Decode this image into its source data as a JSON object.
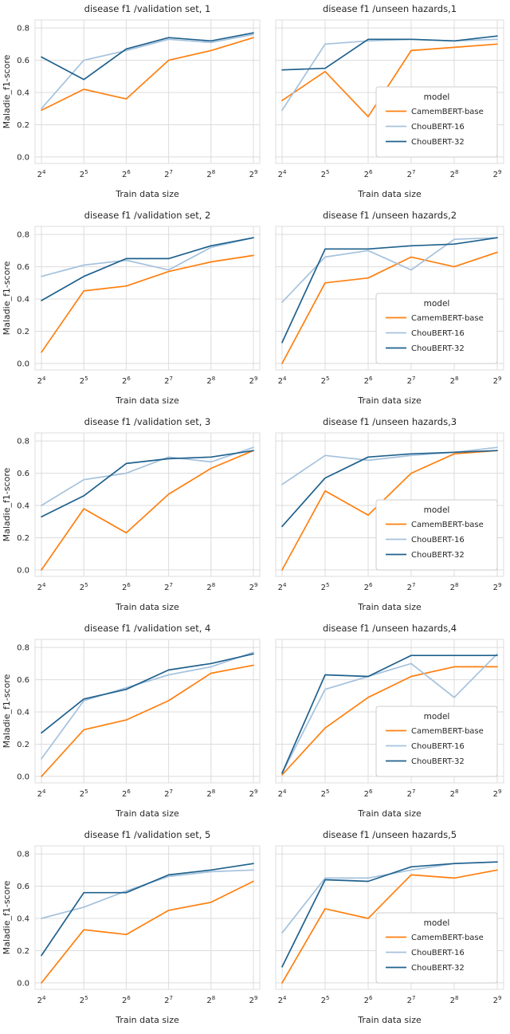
{
  "style": {
    "text_color": "#262626",
    "grid_color": "#dcdcdc",
    "background": "#ffffff",
    "series_colors": {
      "CamemBERT-base": "#ff7f0e",
      "ChouBERT-16": "#a5c2dd",
      "ChouBERT-32": "#1f618d"
    }
  },
  "axes": {
    "xlabel": "Train data size",
    "ylabel": "Maladie_f1-score",
    "x_tick_base": "2",
    "x_exponents": [
      4,
      5,
      6,
      7,
      8,
      9
    ],
    "yticks": [
      0.0,
      0.2,
      0.4,
      0.6,
      0.8
    ],
    "ylim": [
      -0.04,
      0.85
    ]
  },
  "legend": {
    "title": "model",
    "entries": [
      "CamemBERT-base",
      "ChouBERT-16",
      "ChouBERT-32"
    ]
  },
  "chart_data": [
    {
      "type": "line",
      "name": "validation-set-1-chart",
      "col": "left",
      "title": "disease f1 /validation set, 1",
      "show_legend": false,
      "series": [
        {
          "name": "CamemBERT-base",
          "values": [
            0.29,
            0.42,
            0.36,
            0.6,
            0.66,
            0.74
          ]
        },
        {
          "name": "ChouBERT-16",
          "values": [
            0.3,
            0.6,
            0.66,
            0.73,
            0.71,
            0.76
          ]
        },
        {
          "name": "ChouBERT-32",
          "values": [
            0.62,
            0.48,
            0.67,
            0.74,
            0.72,
            0.77
          ]
        }
      ]
    },
    {
      "type": "line",
      "name": "unseen-hazards-1-chart",
      "col": "right",
      "title": "disease f1 /unseen hazards,1",
      "show_legend": true,
      "series": [
        {
          "name": "CamemBERT-base",
          "values": [
            0.35,
            0.53,
            0.25,
            0.66,
            0.68,
            0.7
          ]
        },
        {
          "name": "ChouBERT-16",
          "values": [
            0.29,
            0.7,
            0.72,
            0.73,
            0.72,
            0.73
          ]
        },
        {
          "name": "ChouBERT-32",
          "values": [
            0.54,
            0.55,
            0.73,
            0.73,
            0.72,
            0.75
          ]
        }
      ]
    },
    {
      "type": "line",
      "name": "validation-set-2-chart",
      "col": "left",
      "title": "disease f1 /validation set, 2",
      "show_legend": false,
      "series": [
        {
          "name": "CamemBERT-base",
          "values": [
            0.07,
            0.45,
            0.48,
            0.57,
            0.63,
            0.67
          ]
        },
        {
          "name": "ChouBERT-16",
          "values": [
            0.54,
            0.61,
            0.64,
            0.58,
            0.72,
            0.78
          ]
        },
        {
          "name": "ChouBERT-32",
          "values": [
            0.39,
            0.54,
            0.65,
            0.65,
            0.73,
            0.78
          ]
        }
      ]
    },
    {
      "type": "line",
      "name": "unseen-hazards-2-chart",
      "col": "right",
      "title": "disease f1 /unseen hazards,2",
      "show_legend": true,
      "series": [
        {
          "name": "CamemBERT-base",
          "values": [
            0.0,
            0.5,
            0.53,
            0.66,
            0.6,
            0.69
          ]
        },
        {
          "name": "ChouBERT-16",
          "values": [
            0.38,
            0.66,
            0.7,
            0.58,
            0.77,
            0.78
          ]
        },
        {
          "name": "ChouBERT-32",
          "values": [
            0.13,
            0.71,
            0.71,
            0.73,
            0.74,
            0.78
          ]
        }
      ]
    },
    {
      "type": "line",
      "name": "validation-set-3-chart",
      "col": "left",
      "title": "disease f1 /validation set, 3",
      "show_legend": false,
      "series": [
        {
          "name": "CamemBERT-base",
          "values": [
            0.0,
            0.38,
            0.23,
            0.47,
            0.63,
            0.74
          ]
        },
        {
          "name": "ChouBERT-16",
          "values": [
            0.4,
            0.56,
            0.6,
            0.7,
            0.67,
            0.76
          ]
        },
        {
          "name": "ChouBERT-32",
          "values": [
            0.33,
            0.46,
            0.66,
            0.69,
            0.7,
            0.74
          ]
        }
      ]
    },
    {
      "type": "line",
      "name": "unseen-hazards-3-chart",
      "col": "right",
      "title": "disease f1 /unseen hazards,3",
      "show_legend": true,
      "series": [
        {
          "name": "CamemBERT-base",
          "values": [
            0.0,
            0.49,
            0.34,
            0.6,
            0.72,
            0.74
          ]
        },
        {
          "name": "ChouBERT-16",
          "values": [
            0.53,
            0.71,
            0.68,
            0.71,
            0.73,
            0.76
          ]
        },
        {
          "name": "ChouBERT-32",
          "values": [
            0.27,
            0.57,
            0.7,
            0.72,
            0.73,
            0.74
          ]
        }
      ]
    },
    {
      "type": "line",
      "name": "validation-set-4-chart",
      "col": "left",
      "title": "disease f1 /validation set, 4",
      "show_legend": false,
      "series": [
        {
          "name": "CamemBERT-base",
          "values": [
            0.0,
            0.29,
            0.35,
            0.47,
            0.64,
            0.69
          ]
        },
        {
          "name": "ChouBERT-16",
          "values": [
            0.11,
            0.47,
            0.55,
            0.63,
            0.68,
            0.77
          ]
        },
        {
          "name": "ChouBERT-32",
          "values": [
            0.27,
            0.48,
            0.54,
            0.66,
            0.7,
            0.76
          ]
        }
      ]
    },
    {
      "type": "line",
      "name": "unseen-hazards-4-chart",
      "col": "right",
      "title": "disease f1 /unseen hazards,4",
      "show_legend": true,
      "series": [
        {
          "name": "CamemBERT-base",
          "values": [
            0.01,
            0.3,
            0.49,
            0.62,
            0.68,
            0.68
          ]
        },
        {
          "name": "ChouBERT-16",
          "values": [
            0.02,
            0.54,
            0.62,
            0.7,
            0.49,
            0.76
          ]
        },
        {
          "name": "ChouBERT-32",
          "values": [
            0.02,
            0.63,
            0.62,
            0.75,
            0.75,
            0.75
          ]
        }
      ]
    },
    {
      "type": "line",
      "name": "validation-set-5-chart",
      "col": "left",
      "title": "disease f1 /validation set, 5",
      "show_legend": false,
      "series": [
        {
          "name": "CamemBERT-base",
          "values": [
            0.0,
            0.33,
            0.3,
            0.45,
            0.5,
            0.63
          ]
        },
        {
          "name": "ChouBERT-16",
          "values": [
            0.4,
            0.47,
            0.57,
            0.66,
            0.69,
            0.7
          ]
        },
        {
          "name": "ChouBERT-32",
          "values": [
            0.17,
            0.56,
            0.56,
            0.67,
            0.7,
            0.74
          ]
        }
      ]
    },
    {
      "type": "line",
      "name": "unseen-hazards-5-chart",
      "col": "right",
      "title": "disease f1 /unseen hazards,5",
      "show_legend": true,
      "series": [
        {
          "name": "CamemBERT-base",
          "values": [
            0.0,
            0.46,
            0.4,
            0.67,
            0.65,
            0.7
          ]
        },
        {
          "name": "ChouBERT-16",
          "values": [
            0.31,
            0.65,
            0.65,
            0.7,
            0.74,
            0.75
          ]
        },
        {
          "name": "ChouBERT-32",
          "values": [
            0.1,
            0.64,
            0.63,
            0.72,
            0.74,
            0.75
          ]
        }
      ]
    }
  ]
}
